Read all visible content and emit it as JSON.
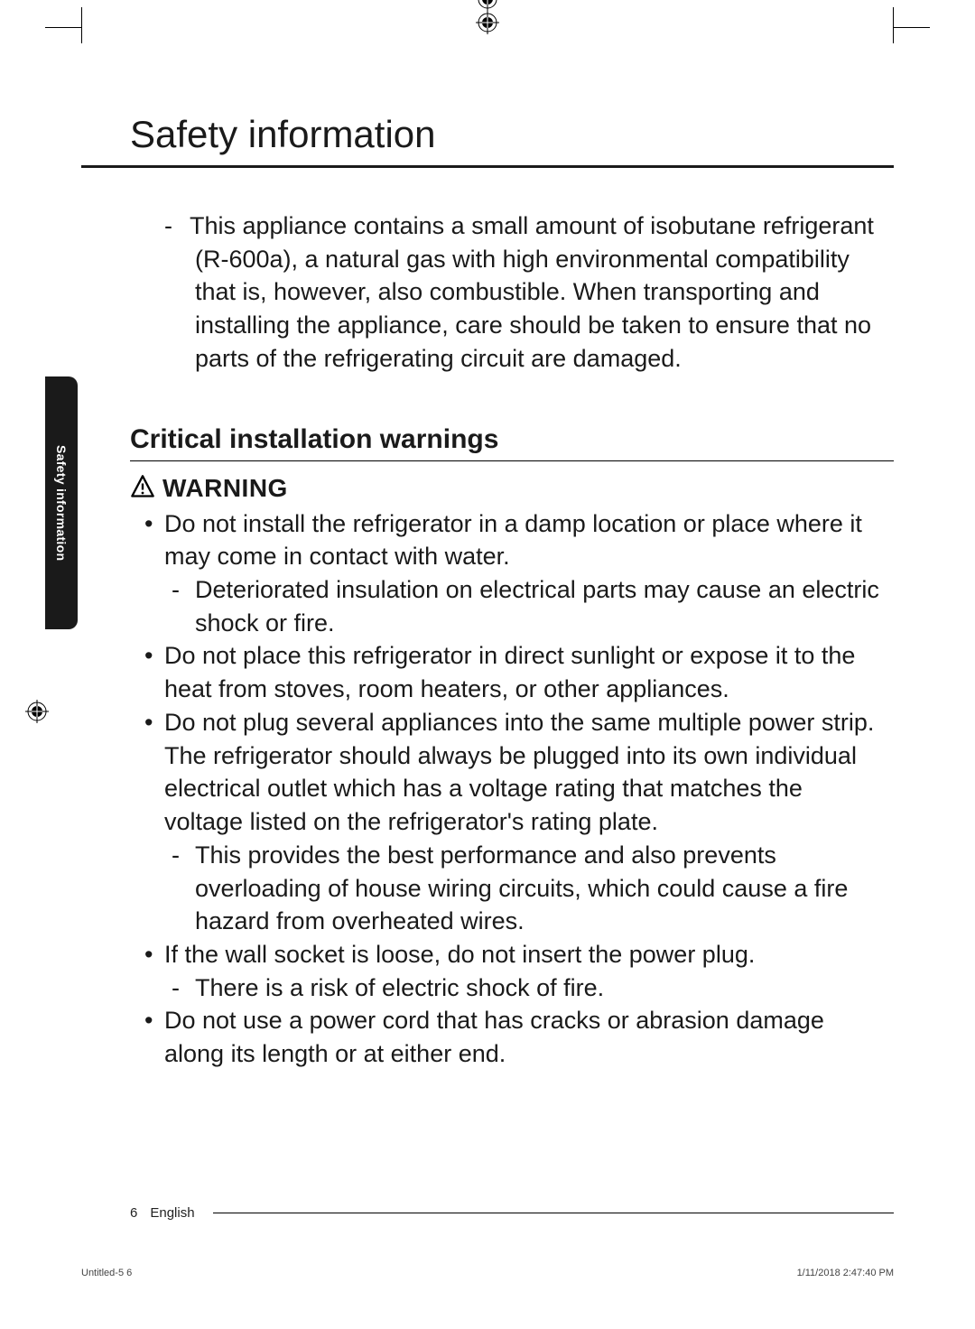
{
  "title": "Safety information",
  "intro": "This appliance contains a small amount of isobutane refrigerant (R-600a), a natural gas with high environmental compatibility that is, however, also combustible. When transporting and installing the appliance, care should be taken to ensure that no parts of the refrigerating circuit are damaged.",
  "section_heading": "Critical installation warnings",
  "warning_label": "WARNING",
  "bullets": [
    {
      "text": "Do not install the refrigerator in a damp location or place where it may come in contact with water.",
      "subs": [
        "Deteriorated insulation on electrical parts may cause an electric shock or fire."
      ]
    },
    {
      "text": "Do not place this refrigerator in direct sunlight or expose it to the heat from stoves, room heaters, or other appliances.",
      "subs": []
    },
    {
      "text": "Do not plug several appliances into the same multiple power strip. The refrigerator should always be plugged into its own individual electrical outlet which has a voltage rating that matches the voltage listed on the refrigerator's rating plate.",
      "subs": [
        "This provides the best performance and also prevents overloading of house wiring circuits, which could cause a fire hazard from overheated wires."
      ]
    },
    {
      "text": "If the wall socket is loose, do not insert the power plug.",
      "subs": [
        "There is a risk of electric shock of fire."
      ]
    },
    {
      "text": "Do not use a power cord that has cracks or abrasion damage along its length or at either end.",
      "subs": []
    }
  ],
  "side_tab": "Safety information",
  "footer": {
    "page_number": "6",
    "language": "English"
  },
  "meta": {
    "left": "Untitled-5   6",
    "right": "1/11/2018   2:47:40 PM"
  },
  "colors": {
    "text": "#1a1a1a",
    "tab_bg": "#1a1a1a",
    "tab_text": "#ffffff",
    "rule": "#000000",
    "background": "#ffffff"
  },
  "typography": {
    "title_fontsize": 42,
    "heading_fontsize": 30,
    "body_fontsize": 27,
    "warning_fontsize": 28,
    "sidetab_fontsize": 14,
    "footer_fontsize": 15,
    "meta_fontsize": 11,
    "line_height": 1.36
  },
  "icons": {
    "warning": "triangle-exclamation",
    "registration": "registration-target"
  }
}
